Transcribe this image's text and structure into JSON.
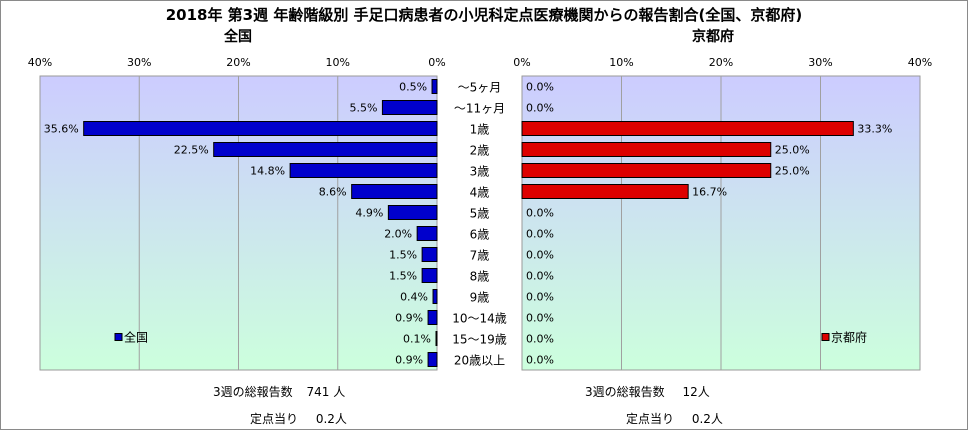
{
  "title": "2018年 第3週 年齢階級別 手足口病患者の小児科定点医療機関からの報告割合(全国、京都府)",
  "chart_data": [
    {
      "type": "bar",
      "orientation": "horizontal",
      "direction": "right-to-left",
      "title": "全国",
      "categories": [
        "～5ヶ月",
        "～11ヶ月",
        "1歳",
        "2歳",
        "3歳",
        "4歳",
        "5歳",
        "6歳",
        "7歳",
        "8歳",
        "9歳",
        "10～14歳",
        "15～19歳",
        "20歳以上"
      ],
      "series": [
        {
          "name": "全国",
          "values": [
            0.5,
            5.5,
            35.6,
            22.5,
            14.8,
            8.6,
            4.9,
            2.0,
            1.5,
            1.5,
            0.4,
            0.9,
            0.1,
            0.9
          ],
          "color": "#0000cc"
        }
      ],
      "data_labels": [
        "0.5%",
        "5.5%",
        "35.6%",
        "22.5%",
        "14.8%",
        "8.6%",
        "4.9%",
        "2.0%",
        "1.5%",
        "1.5%",
        "0.4%",
        "0.9%",
        "0.1%",
        "0.9%"
      ],
      "xlim": [
        0,
        40
      ],
      "ticks": [
        "40%",
        "30%",
        "20%",
        "10%",
        "0%"
      ],
      "grid": true,
      "legend": "bottom-left",
      "plot_background": [
        "#ccccff",
        "#ccffdd"
      ]
    },
    {
      "type": "bar",
      "orientation": "horizontal",
      "direction": "left-to-right",
      "title": "京都府",
      "categories": [
        "～5ヶ月",
        "～11ヶ月",
        "1歳",
        "2歳",
        "3歳",
        "4歳",
        "5歳",
        "6歳",
        "7歳",
        "8歳",
        "9歳",
        "10～14歳",
        "15～19歳",
        "20歳以上"
      ],
      "series": [
        {
          "name": "京都府",
          "values": [
            0,
            0,
            33.3,
            25.0,
            25.0,
            16.7,
            0,
            0,
            0,
            0,
            0,
            0,
            0,
            0
          ],
          "color": "#dd0000"
        }
      ],
      "data_labels": [
        "0.0%",
        "0.0%",
        "33.3%",
        "25.0%",
        "25.0%",
        "16.7%",
        "0.0%",
        "0.0%",
        "0.0%",
        "0.0%",
        "0.0%",
        "0.0%",
        "0.0%",
        "0.0%"
      ],
      "xlim": [
        0,
        40
      ],
      "ticks": [
        "0%",
        "10%",
        "20%",
        "30%",
        "40%"
      ],
      "grid": true,
      "legend": "bottom-right",
      "plot_background": [
        "#ccccff",
        "#ccffdd"
      ]
    }
  ],
  "footer": {
    "national": {
      "total_label": "3週の総報告数",
      "total_value": "741 人",
      "per_site_label": "定点当り",
      "per_site_value": "0.2人"
    },
    "kyoto": {
      "total_label": "3週の総報告数",
      "total_value": "12人",
      "per_site_label": "定点当り",
      "per_site_value": "0.2人"
    }
  }
}
